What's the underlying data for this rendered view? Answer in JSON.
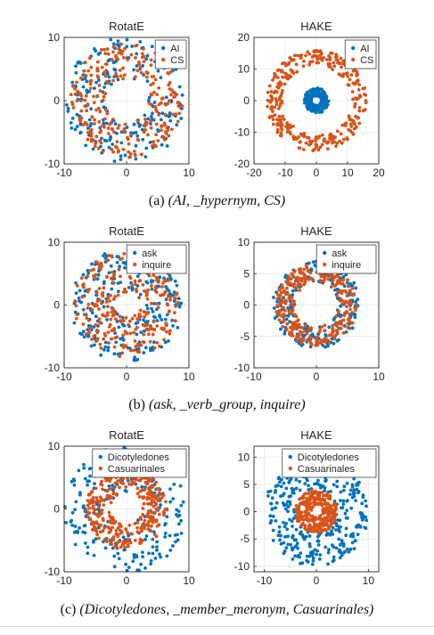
{
  "colors": {
    "series1": "#0072BD",
    "series2": "#D95319",
    "axis": "#262626",
    "grid": "#ebebeb"
  },
  "captions": [
    {
      "prefix": "(a)",
      "text": "(AI, _hypernym, CS)"
    },
    {
      "prefix": "(b)",
      "text": "(ask, _verb_group, inquire)"
    },
    {
      "prefix": "(c)",
      "text": "(Dicotyledones, _member_meronym, Casuarinales)"
    }
  ],
  "chart_data": [
    {
      "type": "scatter",
      "title": "RotatE",
      "legend_position": "top-right",
      "grid": true,
      "xlim": [
        -10,
        10
      ],
      "ylim": [
        -10,
        10
      ],
      "xticks": [
        -10,
        0,
        10
      ],
      "yticks": [
        -10,
        0,
        10
      ],
      "series": [
        {
          "name": "AI",
          "color": "#0072BD",
          "ring": {
            "center": [
              0,
              0
            ],
            "radius_range": [
              3.5,
              10
            ],
            "count": 220
          }
        },
        {
          "name": "CS",
          "color": "#D95319",
          "ring": {
            "center": [
              0,
              0
            ],
            "radius_range": [
              3.5,
              9
            ],
            "count": 260
          }
        }
      ]
    },
    {
      "type": "scatter",
      "title": "HAKE",
      "legend_position": "top-right",
      "grid": true,
      "xlim": [
        -20,
        20
      ],
      "ylim": [
        -20,
        20
      ],
      "xticks": [
        -20,
        -10,
        0,
        10,
        20
      ],
      "yticks": [
        -20,
        -10,
        0,
        10,
        20
      ],
      "series": [
        {
          "name": "AI",
          "color": "#0072BD",
          "ring": {
            "center": [
              0,
              0
            ],
            "radius_range": [
              1.5,
              4
            ],
            "count": 200
          }
        },
        {
          "name": "CS",
          "color": "#D95319",
          "ring": {
            "center": [
              0,
              0
            ],
            "radius_range": [
              11,
              16
            ],
            "count": 320
          }
        }
      ]
    },
    {
      "type": "scatter",
      "title": "RotatE",
      "legend_position": "top-right",
      "grid": true,
      "xlim": [
        -10,
        10
      ],
      "ylim": [
        -10,
        10
      ],
      "xticks": [
        -10,
        0,
        10
      ],
      "yticks": [
        -10,
        0,
        10
      ],
      "series": [
        {
          "name": "ask",
          "color": "#0072BD",
          "ring": {
            "center": [
              0,
              0
            ],
            "radius_range": [
              2,
              9
            ],
            "count": 240
          }
        },
        {
          "name": "inquire",
          "color": "#D95319",
          "ring": {
            "center": [
              0,
              0
            ],
            "radius_range": [
              2,
              8.5
            ],
            "count": 280
          }
        }
      ]
    },
    {
      "type": "scatter",
      "title": "HAKE",
      "legend_position": "top-right",
      "grid": true,
      "xlim": [
        -10,
        10
      ],
      "ylim": [
        -10,
        10
      ],
      "xticks": [
        -10,
        0,
        10
      ],
      "yticks": [
        -10,
        -5,
        0,
        5,
        10
      ],
      "series": [
        {
          "name": "ask",
          "color": "#0072BD",
          "ring": {
            "center": [
              0,
              0
            ],
            "radius_range": [
              3.5,
              7
            ],
            "count": 220
          }
        },
        {
          "name": "inquire",
          "color": "#D95319",
          "ring": {
            "center": [
              0,
              0
            ],
            "radius_range": [
              3.5,
              6.5
            ],
            "count": 300
          }
        }
      ]
    },
    {
      "type": "scatter",
      "title": "RotatE",
      "legend_position": "top-right",
      "grid": true,
      "xlim": [
        -10,
        10
      ],
      "ylim": [
        -10,
        10
      ],
      "xticks": [
        -10,
        0,
        10
      ],
      "yticks": [
        -10,
        0,
        10
      ],
      "series": [
        {
          "name": "Dicotyledones",
          "color": "#0072BD",
          "ring": {
            "center": [
              0,
              0
            ],
            "radius_range": [
              2.5,
              10
            ],
            "count": 240
          }
        },
        {
          "name": "Casuarinales",
          "color": "#D95319",
          "ring": {
            "center": [
              0,
              0
            ],
            "radius_range": [
              2.5,
              6.5
            ],
            "count": 320
          }
        }
      ]
    },
    {
      "type": "scatter",
      "title": "HAKE",
      "legend_position": "top-right",
      "grid": true,
      "xlim": [
        -12,
        12
      ],
      "ylim": [
        -11,
        12
      ],
      "xticks": [
        -10,
        0,
        10
      ],
      "yticks": [
        -10,
        -5,
        0,
        5,
        10
      ],
      "series": [
        {
          "name": "Dicotyledones",
          "color": "#0072BD",
          "ring": {
            "center": [
              0,
              0
            ],
            "radius_range": [
              4,
              10
            ],
            "count": 320
          }
        },
        {
          "name": "Casuarinales",
          "color": "#D95319",
          "ring": {
            "center": [
              0,
              0
            ],
            "radius_range": [
              1,
              4
            ],
            "count": 280
          }
        }
      ]
    }
  ]
}
